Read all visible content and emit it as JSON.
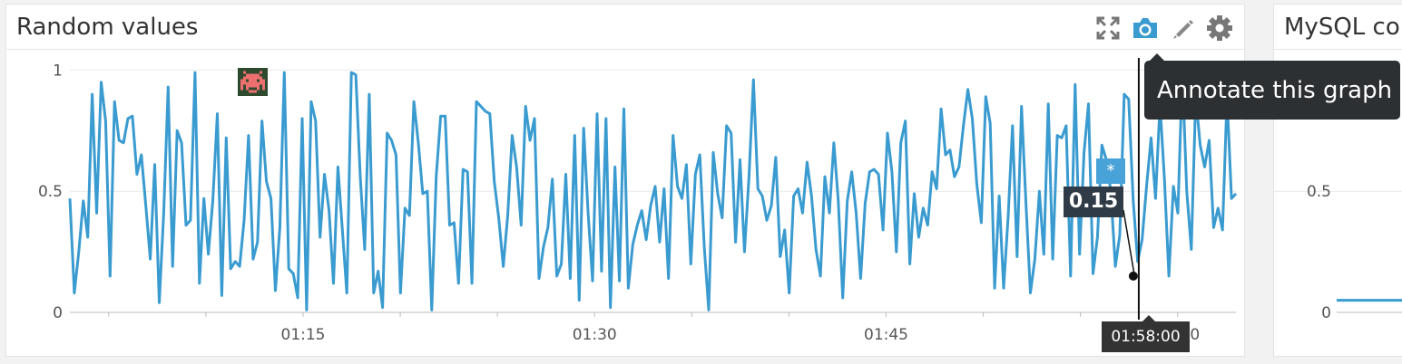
{
  "panels": [
    {
      "title": "Random values",
      "toolbar": [
        {
          "name": "expand-icon"
        },
        {
          "name": "camera-icon"
        },
        {
          "name": "pencil-icon"
        },
        {
          "name": "gear-icon"
        }
      ]
    },
    {
      "title": "MySQL co"
    }
  ],
  "tooltip": {
    "text": "Annotate this graph"
  },
  "hover": {
    "value_label": "0.15",
    "time_label": "01:58:00"
  },
  "annotation_marker": {
    "symbol": "*",
    "color": "#4aa3d8"
  },
  "chart_data": [
    {
      "type": "line",
      "x_unit": "time",
      "x_range": [
        "01:03",
        "02:03"
      ],
      "xticks": [
        "01:15",
        "01:30",
        "01:45",
        "02:00"
      ],
      "xtick_minutes": [
        15,
        30,
        45,
        60
      ],
      "x_start_minute": 3,
      "x_end_minute": 63,
      "yticks": [
        "0",
        "0.5",
        "1"
      ],
      "ytick_values": [
        0,
        0.5,
        1
      ],
      "ylim": [
        0,
        1.05
      ],
      "hover_minute": 58,
      "hover_value": 0.15,
      "series": [
        {
          "color": "#3a9bd0",
          "values": [
            0.47,
            0.08,
            0.25,
            0.46,
            0.31,
            0.9,
            0.41,
            0.95,
            0.79,
            0.15,
            0.87,
            0.71,
            0.7,
            0.8,
            0.81,
            0.57,
            0.65,
            0.44,
            0.22,
            0.61,
            0.04,
            0.41,
            0.93,
            0.19,
            0.75,
            0.7,
            0.36,
            0.38,
            0.99,
            0.12,
            0.47,
            0.24,
            0.46,
            0.82,
            0.07,
            0.72,
            0.18,
            0.21,
            0.19,
            0.38,
            0.73,
            0.22,
            0.29,
            0.79,
            0.54,
            0.47,
            0.09,
            0.35,
            0.99,
            0.18,
            0.16,
            0.06,
            0.8,
            0.01,
            0.87,
            0.79,
            0.31,
            0.57,
            0.42,
            0.12,
            0.6,
            0.34,
            0.08,
            0.99,
            0.98,
            0.56,
            0.26,
            0.9,
            0.08,
            0.17,
            0.02,
            0.74,
            0.71,
            0.65,
            0.08,
            0.43,
            0.4,
            0.87,
            0.7,
            0.49,
            0.5,
            0.01,
            0.56,
            0.81,
            0.81,
            0.36,
            0.37,
            0.12,
            0.59,
            0.58,
            0.12,
            0.87,
            0.85,
            0.83,
            0.82,
            0.54,
            0.39,
            0.19,
            0.4,
            0.73,
            0.6,
            0.36,
            0.85,
            0.71,
            0.8,
            0.14,
            0.27,
            0.35,
            0.55,
            0.15,
            0.2,
            0.57,
            0.14,
            0.73,
            0.05,
            0.76,
            0.41,
            0.13,
            0.82,
            0.17,
            0.8,
            0.02,
            0.6,
            0.13,
            0.84,
            0.1,
            0.28,
            0.36,
            0.42,
            0.3,
            0.44,
            0.52,
            0.29,
            0.51,
            0.14,
            0.73,
            0.52,
            0.47,
            0.61,
            0.2,
            0.57,
            0.65,
            0.27,
            0.01,
            0.66,
            0.49,
            0.39,
            0.77,
            0.74,
            0.29,
            0.63,
            0.25,
            0.56,
            0.96,
            0.51,
            0.48,
            0.38,
            0.44,
            0.64,
            0.23,
            0.34,
            0.08,
            0.48,
            0.51,
            0.41,
            0.62,
            0.48,
            0.26,
            0.15,
            0.56,
            0.41,
            0.7,
            0.46,
            0.06,
            0.46,
            0.58,
            0.41,
            0.14,
            0.45,
            0.58,
            0.59,
            0.57,
            0.34,
            0.74,
            0.58,
            0.25,
            0.7,
            0.79,
            0.2,
            0.49,
            0.31,
            0.43,
            0.36,
            0.58,
            0.51,
            0.84,
            0.65,
            0.67,
            0.56,
            0.6,
            0.77,
            0.92,
            0.8,
            0.53,
            0.37,
            0.89,
            0.78,
            0.1,
            0.48,
            0.1,
            0.39,
            0.77,
            0.23,
            0.85,
            0.45,
            0.08,
            0.22,
            0.5,
            0.24,
            0.86,
            0.22,
            0.73,
            0.72,
            0.77,
            0.15,
            0.94,
            0.24,
            0.66,
            0.86,
            0.16,
            0.31,
            0.69,
            0.63,
            0.5,
            0.19,
            0.32,
            0.9,
            0.88,
            0.46,
            0.21,
            0.3,
            0.52,
            0.72,
            0.47,
            0.86,
            0.55,
            0.15,
            0.52,
            0.41,
            0.99,
            0.5,
            0.26,
            0.89,
            0.69,
            0.6,
            0.71,
            0.35,
            0.43,
            0.34,
            0.89,
            0.47,
            0.49
          ]
        }
      ]
    }
  ]
}
